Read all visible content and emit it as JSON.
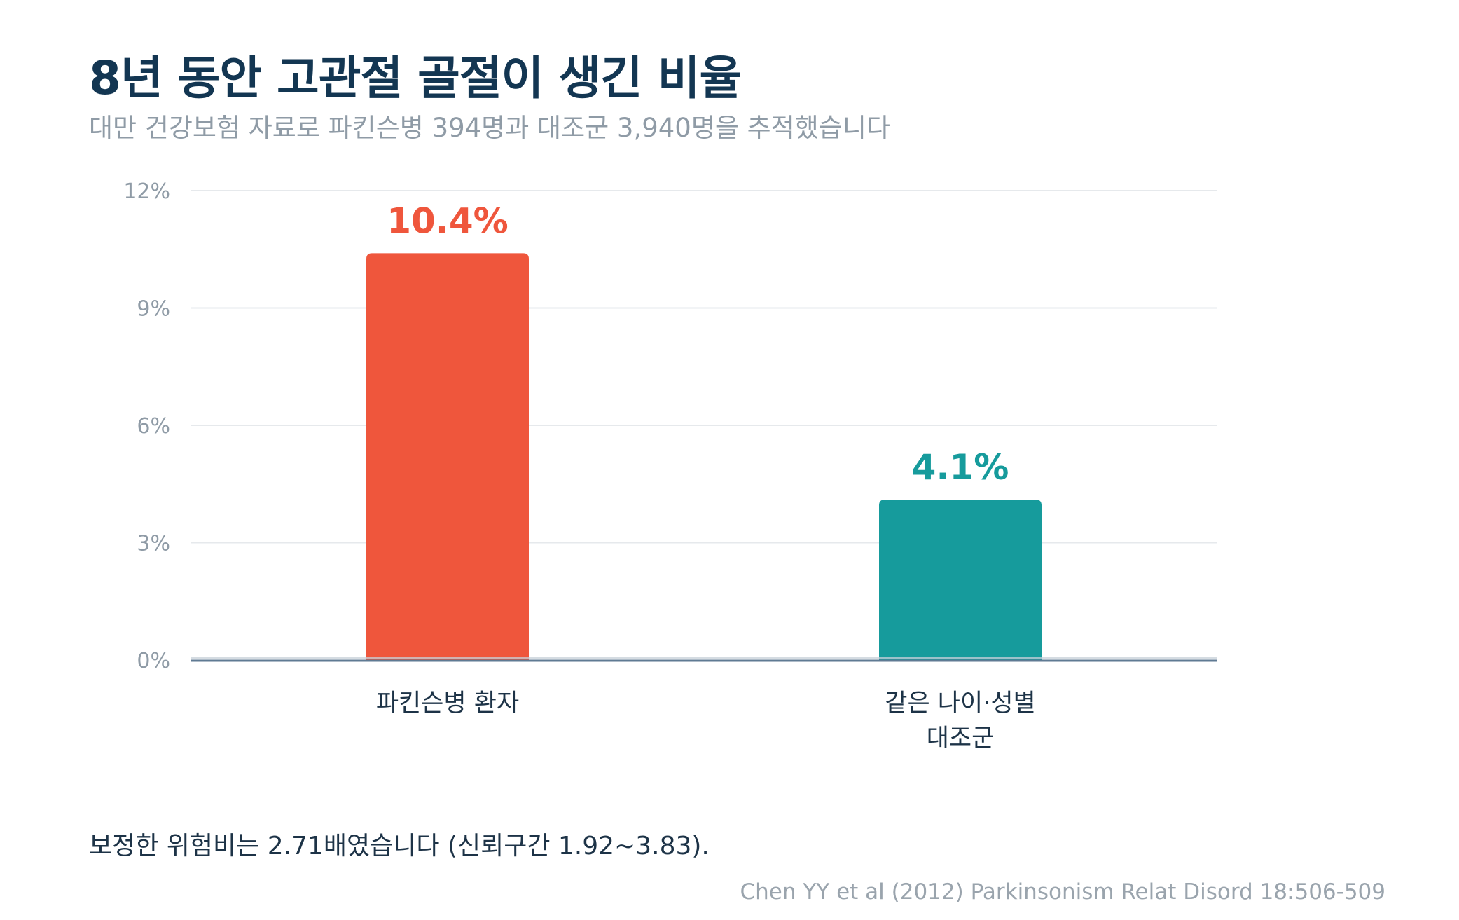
{
  "title": "8년 동안 고관절 골절이 생긴 비율",
  "subtitle": "대만 건강보험 자료로 파킨슨병 394명과 대조군 3,940명을 추적했습니다",
  "note": "보정한 위험비는 2.71배였습니다 (신뢰구간 1.92~3.83).",
  "source": "Chen YY et al (2012) Parkinsonism Relat Disord 18:506-509",
  "chart_data": {
    "type": "bar",
    "title": "8년 동안 고관절 골절이 생긴 비율",
    "categories": [
      [
        "파킨슨병 환자"
      ],
      [
        "같은 나이·성별",
        "대조군"
      ]
    ],
    "values": [
      10.4,
      4.1
    ],
    "value_labels": [
      "10.4%",
      "4.1%"
    ],
    "colors": [
      "#ef563c",
      "#169b9c"
    ],
    "ylim": [
      0,
      12
    ],
    "yticks": [
      0,
      3,
      6,
      9,
      12
    ],
    "ytick_labels": [
      "0%",
      "3%",
      "6%",
      "9%",
      "12%"
    ],
    "grid": true,
    "legend": "none"
  }
}
